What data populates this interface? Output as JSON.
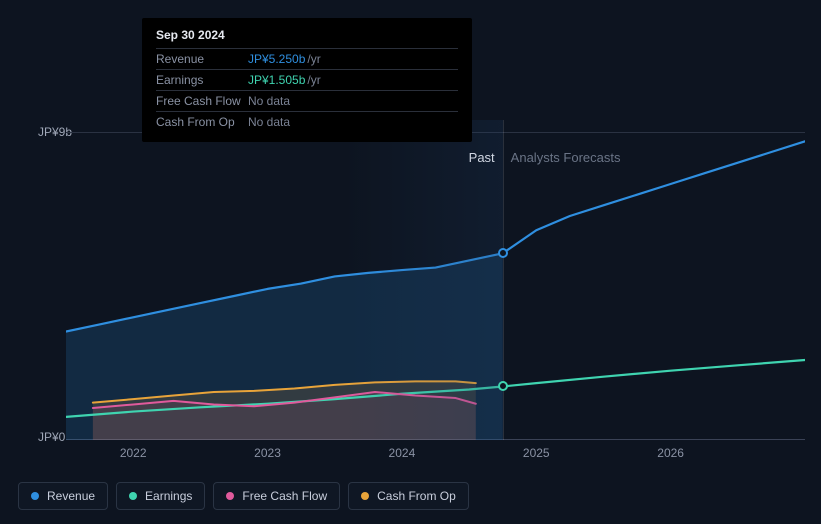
{
  "chart": {
    "background": "#0d1420",
    "y_axis": {
      "top_label": "JP¥9b",
      "bottom_label": "JP¥0",
      "min": 0,
      "max": 9
    },
    "x_axis": {
      "min": 2021.5,
      "max": 2027.0,
      "ticks": [
        {
          "pos": 2022,
          "label": "2022"
        },
        {
          "pos": 2023,
          "label": "2023"
        },
        {
          "pos": 2024,
          "label": "2024"
        },
        {
          "pos": 2025,
          "label": "2025"
        },
        {
          "pos": 2026,
          "label": "2026"
        }
      ]
    },
    "divider_x": 2024.75,
    "past_label": "Past",
    "forecast_label": "Analysts Forecasts",
    "series": [
      {
        "key": "revenue",
        "label": "Revenue",
        "color": "#2f8fe0",
        "width": 2.2,
        "points": [
          [
            2021.5,
            3.05
          ],
          [
            2021.75,
            3.25
          ],
          [
            2022,
            3.45
          ],
          [
            2022.25,
            3.65
          ],
          [
            2022.5,
            3.85
          ],
          [
            2022.75,
            4.05
          ],
          [
            2023,
            4.25
          ],
          [
            2023.25,
            4.4
          ],
          [
            2023.5,
            4.6
          ],
          [
            2023.75,
            4.7
          ],
          [
            2024,
            4.78
          ],
          [
            2024.25,
            4.85
          ],
          [
            2024.5,
            5.05
          ],
          [
            2024.75,
            5.25
          ],
          [
            2025,
            5.9
          ],
          [
            2025.25,
            6.3
          ],
          [
            2025.5,
            6.6
          ],
          [
            2025.75,
            6.9
          ],
          [
            2026,
            7.2
          ],
          [
            2026.25,
            7.5
          ],
          [
            2026.5,
            7.8
          ],
          [
            2026.75,
            8.1
          ],
          [
            2027,
            8.4
          ]
        ],
        "marker_at": [
          2024.75,
          5.25
        ]
      },
      {
        "key": "earnings",
        "label": "Earnings",
        "color": "#3fd4b0",
        "width": 2.2,
        "points": [
          [
            2021.5,
            0.65
          ],
          [
            2022,
            0.8
          ],
          [
            2022.5,
            0.92
          ],
          [
            2023,
            1.02
          ],
          [
            2023.5,
            1.15
          ],
          [
            2024,
            1.3
          ],
          [
            2024.5,
            1.42
          ],
          [
            2024.75,
            1.505
          ],
          [
            2025,
            1.6
          ],
          [
            2025.5,
            1.78
          ],
          [
            2026,
            1.95
          ],
          [
            2026.5,
            2.1
          ],
          [
            2027,
            2.25
          ]
        ],
        "marker_at": [
          2024.75,
          1.505
        ]
      },
      {
        "key": "fcf",
        "label": "Free Cash Flow",
        "color": "#e05a9c",
        "width": 2,
        "points": [
          [
            2021.7,
            0.9
          ],
          [
            2022,
            1.0
          ],
          [
            2022.3,
            1.1
          ],
          [
            2022.6,
            1.0
          ],
          [
            2022.9,
            0.95
          ],
          [
            2023.2,
            1.05
          ],
          [
            2023.5,
            1.2
          ],
          [
            2023.8,
            1.35
          ],
          [
            2024.1,
            1.25
          ],
          [
            2024.4,
            1.18
          ],
          [
            2024.55,
            1.02
          ]
        ]
      },
      {
        "key": "cfo",
        "label": "Cash From Op",
        "color": "#e8a43a",
        "width": 2,
        "points": [
          [
            2021.7,
            1.05
          ],
          [
            2022,
            1.15
          ],
          [
            2022.3,
            1.25
          ],
          [
            2022.6,
            1.35
          ],
          [
            2022.9,
            1.38
          ],
          [
            2023.2,
            1.45
          ],
          [
            2023.5,
            1.55
          ],
          [
            2023.8,
            1.62
          ],
          [
            2024.1,
            1.65
          ],
          [
            2024.4,
            1.65
          ],
          [
            2024.55,
            1.6
          ]
        ]
      }
    ],
    "fill_under": {
      "revenue_color": "rgba(47,143,224,0.18)",
      "cfo_color": "rgba(232,164,58,0.15)",
      "fcf_color": "rgba(224,90,156,0.10)"
    }
  },
  "tooltip": {
    "title": "Sep 30 2024",
    "rows": [
      {
        "label": "Revenue",
        "value": "JP¥5.250b",
        "unit": "/yr",
        "color": "#2f8fe0"
      },
      {
        "label": "Earnings",
        "value": "JP¥1.505b",
        "unit": "/yr",
        "color": "#3fd4b0"
      },
      {
        "label": "Free Cash Flow",
        "value": "No data",
        "unit": "",
        "color": "#7a8294"
      },
      {
        "label": "Cash From Op",
        "value": "No data",
        "unit": "",
        "color": "#7a8294"
      }
    ]
  },
  "legend": [
    {
      "label": "Revenue",
      "color": "#2f8fe0"
    },
    {
      "label": "Earnings",
      "color": "#3fd4b0"
    },
    {
      "label": "Free Cash Flow",
      "color": "#e05a9c"
    },
    {
      "label": "Cash From Op",
      "color": "#e8a43a"
    }
  ]
}
